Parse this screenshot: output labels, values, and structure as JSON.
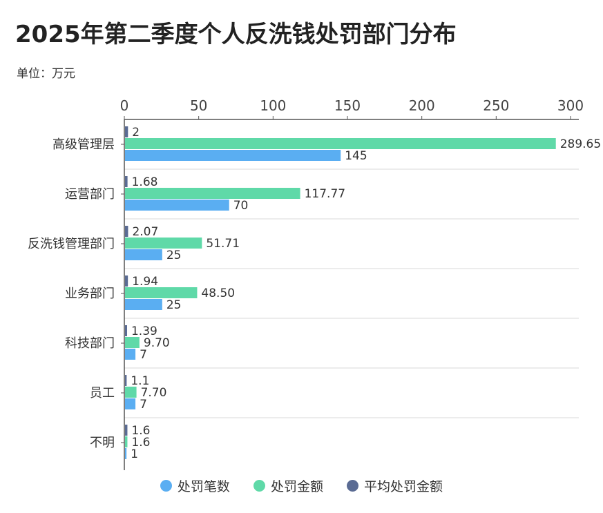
{
  "title": "2025年第二季度个人反洗钱处罚部门分布",
  "unit": "单位：万元",
  "colors": {
    "count": "#5aaef2",
    "amount": "#5fd9a8",
    "avg": "#5a6b93",
    "grid": "#d9d9d9",
    "axis": "#555555"
  },
  "chart_data": {
    "type": "bar",
    "orientation": "horizontal",
    "title": "2025年第二季度个人反洗钱处罚部门分布",
    "unit": "单位：万元",
    "categories": [
      "高级管理层",
      "运营部门",
      "反洗钱管理部门",
      "业务部门",
      "科技部门",
      "员工",
      "不明"
    ],
    "xlim": [
      0,
      300
    ],
    "xticks": [
      0,
      50,
      100,
      150,
      200,
      250,
      300
    ],
    "series": [
      {
        "name": "平均处罚金额",
        "key": "avg",
        "values": [
          2,
          1.68,
          2.07,
          1.94,
          1.39,
          1.1,
          1.6
        ],
        "labels": [
          "2",
          "1.68",
          "2.07",
          "1.94",
          "1.39",
          "1.1",
          "1.6"
        ]
      },
      {
        "name": "处罚金额",
        "key": "amount",
        "values": [
          289.65,
          117.77,
          51.71,
          48.5,
          9.7,
          7.7,
          1.6
        ],
        "labels": [
          "289.65",
          "117.77",
          "51.71",
          "48.50",
          "9.70",
          "7.70",
          "1.6"
        ]
      },
      {
        "name": "处罚笔数",
        "key": "count",
        "values": [
          145,
          70,
          25,
          25,
          7,
          7,
          1
        ],
        "labels": [
          "145",
          "70",
          "25",
          "25",
          "7",
          "7",
          "1"
        ]
      }
    ],
    "legend": {
      "position": "bottom",
      "items": [
        {
          "name": "处罚笔数",
          "key": "count"
        },
        {
          "name": "处罚金额",
          "key": "amount"
        },
        {
          "name": "平均处罚金额",
          "key": "avg"
        }
      ]
    }
  }
}
